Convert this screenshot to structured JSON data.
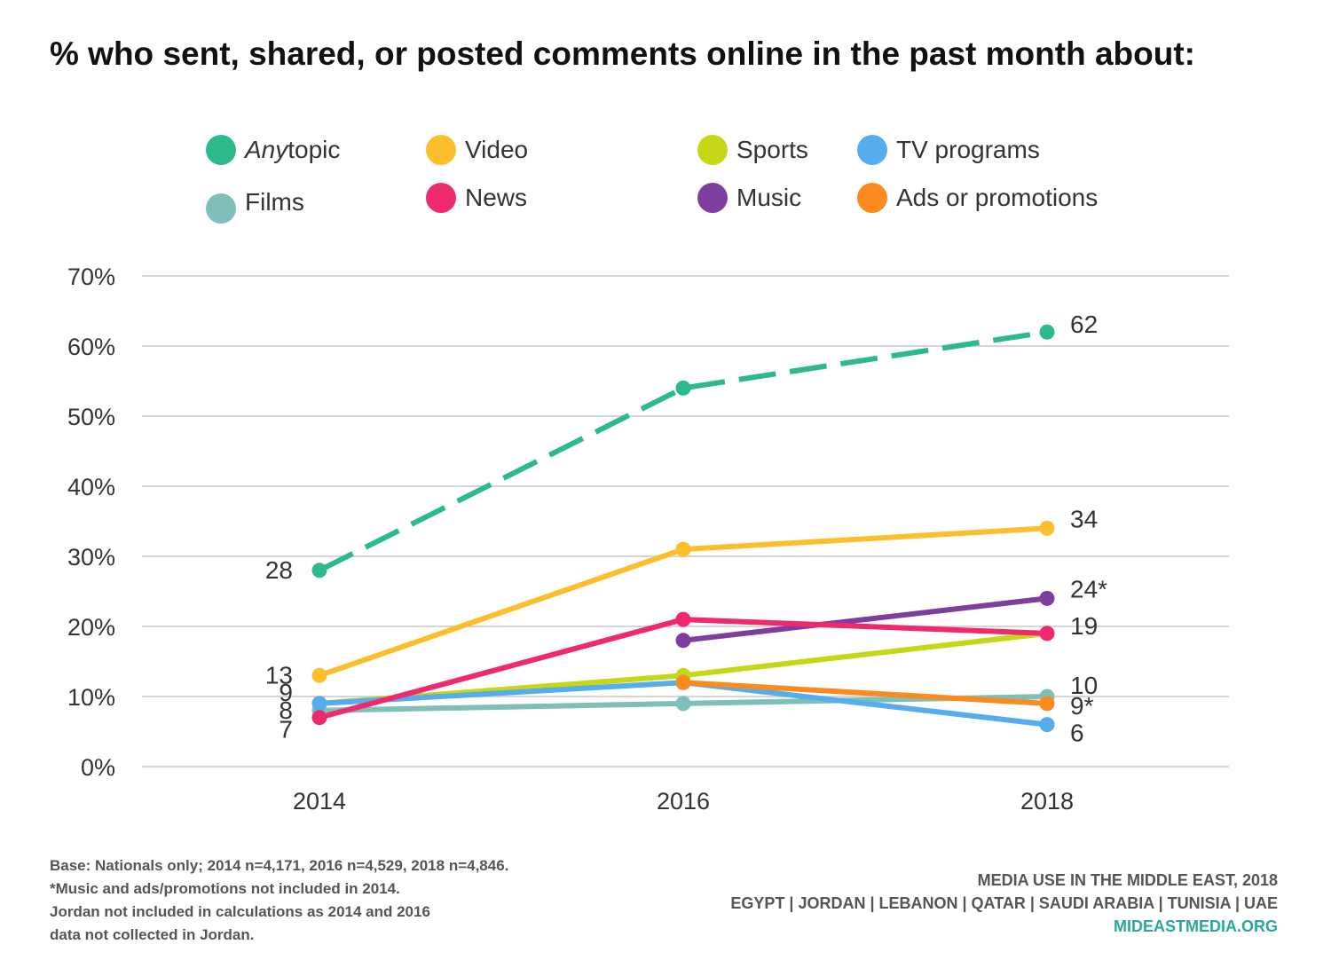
{
  "title": "% who sent, shared, or posted comments online in the past month about:",
  "legend": [
    {
      "label_em": "Any",
      "label": " topic",
      "color": "#2dba8b"
    },
    {
      "label_em": "",
      "label": "Video",
      "color": "#fdbe2d"
    },
    {
      "label_em": "",
      "label": "Sports",
      "color": "#c5d716"
    },
    {
      "label_em": "",
      "label": "TV programs",
      "color": "#55aded"
    },
    {
      "label_em": "",
      "label": "Films",
      "color": "#7fbfba"
    },
    {
      "label_em": "",
      "label": "News",
      "color": "#ee2a6c"
    },
    {
      "label_em": "",
      "label": "Music",
      "color": "#7e3ea0"
    },
    {
      "label_em": "",
      "label": "Ads or promotions",
      "color": "#fa8b1c"
    }
  ],
  "chart_data": {
    "type": "line",
    "x": [
      "2014",
      "2016",
      "2018"
    ],
    "ylim": [
      0,
      70
    ],
    "yticks": [
      "0%",
      "10%",
      "20%",
      "30%",
      "40%",
      "50%",
      "60%",
      "70%"
    ],
    "grid": true,
    "series": [
      {
        "name": "Films",
        "values": [
          8,
          9,
          10
        ],
        "color": "#7fbfba",
        "dashed": false
      },
      {
        "name": "Sports",
        "values": [
          9,
          13,
          19
        ],
        "color": "#c5d716",
        "dashed": false
      },
      {
        "name": "TV programs",
        "values": [
          9,
          12,
          6
        ],
        "color": "#55aded",
        "dashed": false
      },
      {
        "name": "Ads or promotions",
        "values": [
          null,
          12,
          9
        ],
        "color": "#fa8b1c",
        "dashed": false
      },
      {
        "name": "Music",
        "values": [
          null,
          18,
          24
        ],
        "color": "#7e3ea0",
        "dashed": false
      },
      {
        "name": "News",
        "values": [
          7,
          21,
          19
        ],
        "color": "#ee2a6c",
        "dashed": false
      },
      {
        "name": "Video",
        "values": [
          13,
          31,
          34
        ],
        "color": "#fdbe2d",
        "dashed": false
      },
      {
        "name": "Any topic",
        "values": [
          28,
          54,
          62
        ],
        "color": "#2dba8b",
        "dashed": true
      }
    ],
    "data_labels": [
      {
        "text": "28",
        "x": "2014",
        "y": 28,
        "side": "left"
      },
      {
        "text": "13",
        "x": "2014",
        "y": 13,
        "side": "left"
      },
      {
        "text": "9",
        "x": "2014",
        "y": 9,
        "side": "left"
      },
      {
        "text": "8",
        "x": "2014",
        "y": 8,
        "side": "left"
      },
      {
        "text": "7",
        "x": "2014",
        "y": 7,
        "side": "left"
      },
      {
        "text": "62",
        "x": "2018",
        "y": 62,
        "side": "right"
      },
      {
        "text": "34",
        "x": "2018",
        "y": 34,
        "side": "right"
      },
      {
        "text": "24*",
        "x": "2018",
        "y": 24,
        "side": "right"
      },
      {
        "text": "19",
        "x": "2018",
        "y": 19,
        "side": "right"
      },
      {
        "text": "10",
        "x": "2018",
        "y": 10,
        "side": "right"
      },
      {
        "text": "9*",
        "x": "2018",
        "y": 9,
        "side": "right"
      },
      {
        "text": "6",
        "x": "2018",
        "y": 6,
        "side": "right"
      }
    ]
  },
  "footnotes": [
    "Base: Nationals only; 2014 n=4,171, 2016 n=4,529, 2018 n=4,846.",
    "*Music and ads/promotions not included in 2014.",
    "Jordan not included in calculations as 2014 and 2016",
    "data not collected in Jordan."
  ],
  "source": {
    "line1": "MEDIA USE IN THE MIDDLE EAST, 2018",
    "line2": "EGYPT | JORDAN | LEBANON | QATAR | SAUDI ARABIA | TUNISIA | UAE",
    "link": "MIDEASTMEDIA.ORG"
  }
}
